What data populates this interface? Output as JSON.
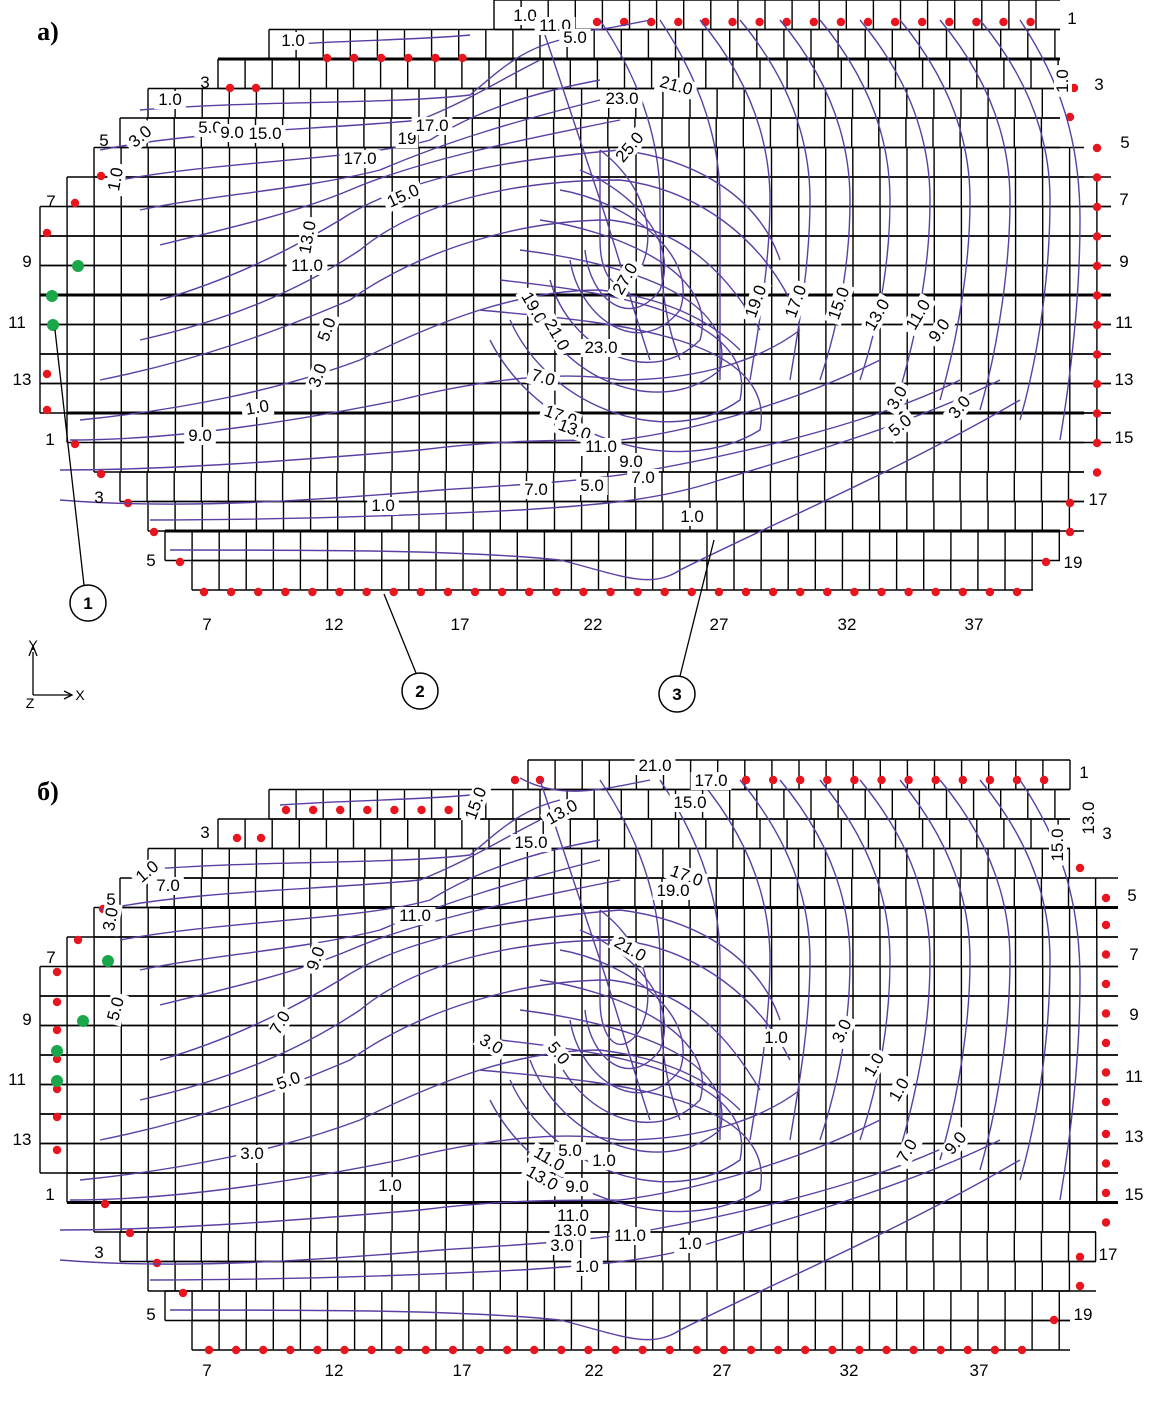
{
  "panels": [
    {
      "id": "a",
      "letter": "а)",
      "row_labels_left": [
        "1",
        "3",
        "5",
        "7",
        "9",
        "11",
        "13"
      ],
      "row_labels_left_lower": [
        "1",
        "3",
        "5"
      ],
      "row_labels_right": [
        "1",
        "3",
        "5",
        "7",
        "9",
        "11",
        "13",
        "15",
        "17",
        "19"
      ],
      "col_labels": [
        "7",
        "12",
        "17",
        "22",
        "27",
        "32",
        "37"
      ],
      "contour_labels": [
        "1.0",
        "3.0",
        "5.0",
        "7.0",
        "9.0",
        "11.0",
        "13.0",
        "15.0",
        "17.0",
        "19.0",
        "21.0",
        "23.0",
        "25.0",
        "27.0"
      ],
      "inline_labels": [
        "1.0",
        "11.0",
        "1.0",
        "5.0",
        "1.0",
        "3.0",
        "5.0",
        "9.0",
        "1.0",
        "15.0",
        "19",
        "17.0",
        "21.0",
        "23.0",
        "25.0",
        "17.0",
        "15.0",
        "13.0",
        "11.0",
        "27.0",
        "19.0",
        "21.0",
        "23.0",
        "19.0",
        "17.0",
        "15.0",
        "13.0",
        "11.0",
        "9.0",
        "7.0",
        "17.0",
        "13.0",
        "11.0",
        "9.0",
        "7.0",
        "5.0",
        "3.0",
        "1.0",
        "9.0",
        "7.0",
        "5.0",
        "3.0",
        "5.0",
        "3.0",
        "1.0",
        "1.0",
        "1.0"
      ],
      "callouts": [
        "1",
        "2",
        "3"
      ]
    },
    {
      "id": "b",
      "letter": "б)",
      "row_labels_left": [
        "1",
        "3",
        "5",
        "7",
        "9",
        "11",
        "13"
      ],
      "row_labels_left_lower": [
        "1",
        "3",
        "5"
      ],
      "row_labels_right": [
        "1",
        "3",
        "5",
        "7",
        "9",
        "11",
        "13",
        "15",
        "17",
        "19"
      ],
      "col_labels": [
        "7",
        "12",
        "17",
        "22",
        "27",
        "32",
        "37"
      ],
      "inline_labels": [
        "21.0",
        "15.0",
        "13.0",
        "15.0",
        "17.0",
        "19.0",
        "21.0",
        "15.0",
        "17.0",
        "13.0",
        "15.0",
        "11.0",
        "9.0",
        "7.0",
        "5.0",
        "3.0",
        "1.0",
        "1.0",
        "3.0",
        "5.0",
        "7.0",
        "9.0",
        "11.0",
        "13.0",
        "3.0",
        "1.0",
        "5.0",
        "7.0",
        "9.0",
        "11.0",
        "13.0",
        "11.0",
        "1.0",
        "1.0",
        "3.0",
        "5.0",
        "1.0",
        "3.0",
        "1.0",
        "1.0"
      ]
    }
  ],
  "axis_glyph": {
    "y": "Y",
    "x": "X",
    "z": "Z"
  },
  "colors": {
    "grid": "#000000",
    "contour": "#5a3fa3",
    "pile_red": "#e8141e",
    "pile_green": "#1aa64a"
  }
}
